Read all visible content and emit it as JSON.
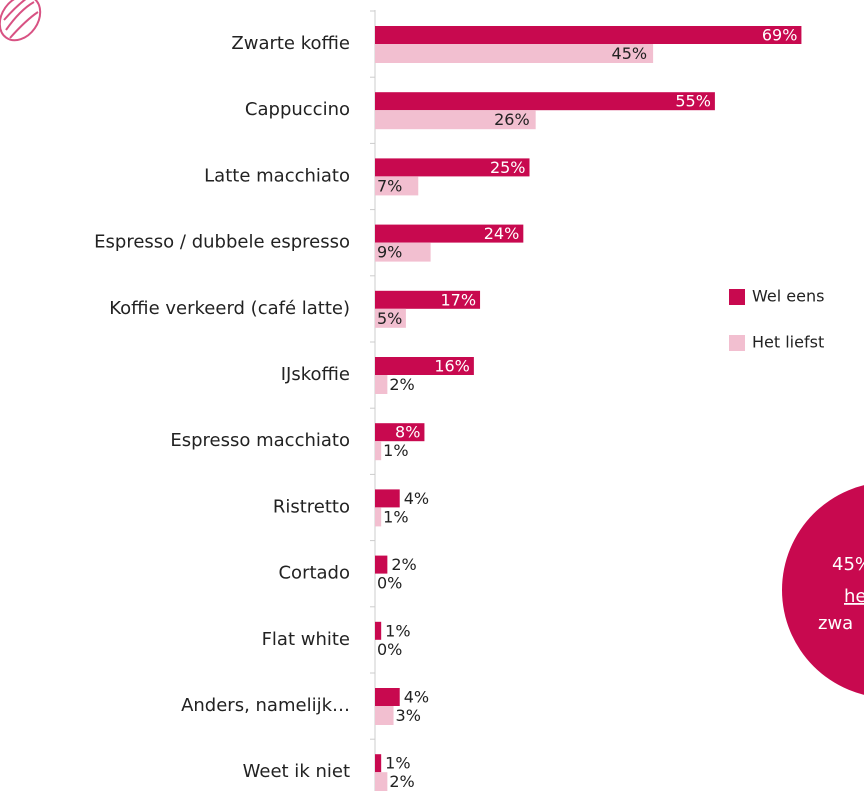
{
  "chart_data": {
    "type": "barh",
    "categories": [
      "Zwarte koffie",
      "Cappuccino",
      "Latte macchiato",
      "Espresso / dubbele espresso",
      "Koffie verkeerd (café latte)",
      "IJskoffie",
      "Espresso macchiato",
      "Ristretto",
      "Cortado",
      "Flat white",
      "Anders, namelijk…",
      "Weet ik niet"
    ],
    "series": [
      {
        "name": "Wel eens",
        "color": "#c8094f",
        "values": [
          69,
          55,
          25,
          24,
          17,
          16,
          8,
          4,
          2,
          1,
          4,
          1
        ],
        "value_labels": [
          "69%",
          "55%",
          "25%",
          "24%",
          "17%",
          "16%",
          "8%",
          "4%",
          "2%",
          "1%",
          "4%",
          "1%"
        ]
      },
      {
        "name": "Het liefst",
        "color": "#f2bfd0",
        "values": [
          45,
          26,
          7,
          9,
          5,
          2,
          1,
          1,
          0,
          0,
          3,
          2
        ],
        "value_labels": [
          "45%",
          "26%",
          "7%",
          "9%",
          "5%",
          "2%",
          "1%",
          "1%",
          "0%",
          "0%",
          "3%",
          "2%"
        ]
      }
    ],
    "xlim": [
      0,
      100
    ],
    "legend": "right",
    "annotation": {
      "color": "#c8094f",
      "lines": [
        "45%",
        "he",
        "zwa"
      ]
    }
  }
}
